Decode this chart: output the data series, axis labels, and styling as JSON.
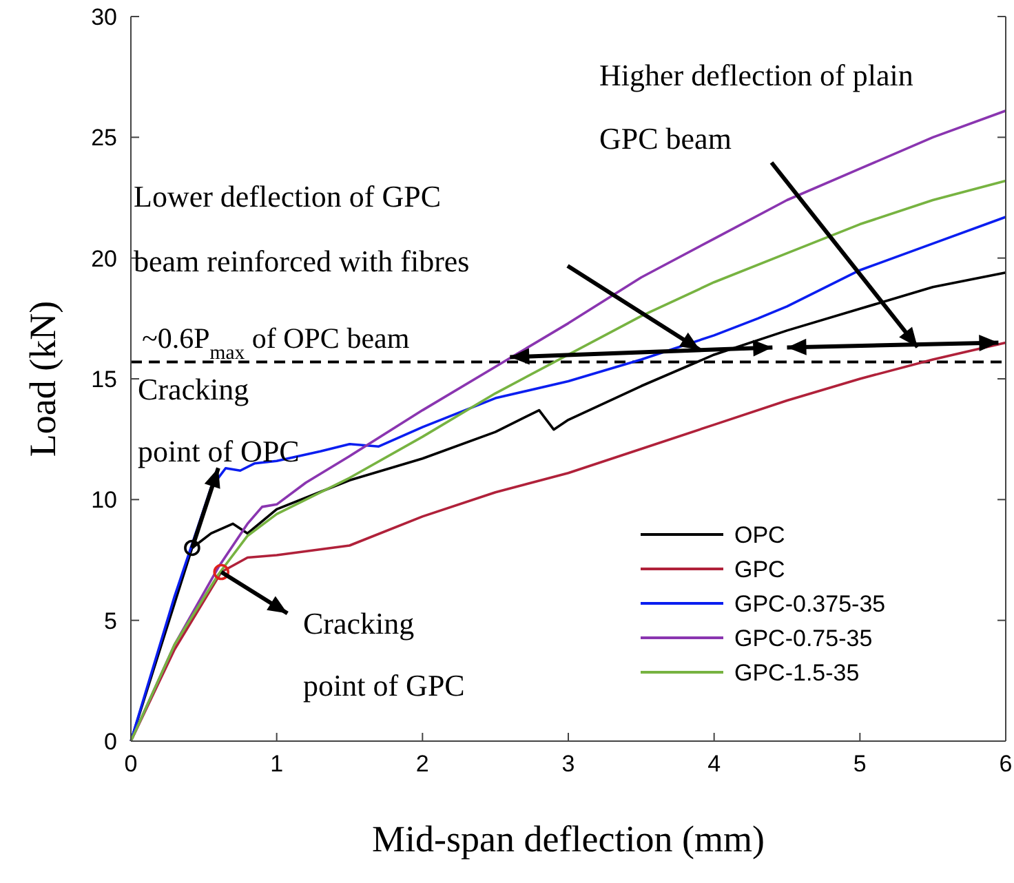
{
  "chart_data": {
    "type": "line",
    "xlabel": "Mid-span deflection (mm)",
    "ylabel": "Load (kN)",
    "xlim": [
      0,
      6
    ],
    "ylim": [
      0,
      30
    ],
    "xticks": [
      0,
      1,
      2,
      3,
      4,
      5,
      6
    ],
    "yticks": [
      0,
      5,
      10,
      15,
      20,
      25,
      30
    ],
    "grid": false,
    "legend": "bottom right",
    "line_style": "solid",
    "marker": "none",
    "series": [
      {
        "name": "OPC",
        "color": "#000000",
        "x": [
          0,
          0.42,
          0.55,
          0.7,
          0.8,
          1.0,
          1.5,
          2.0,
          2.5,
          2.8,
          2.9,
          3.0,
          3.5,
          4.0,
          4.5,
          5.0,
          5.5,
          6.0
        ],
        "values": [
          0,
          8.0,
          8.6,
          9.0,
          8.6,
          9.6,
          10.8,
          11.7,
          12.8,
          13.7,
          12.9,
          13.3,
          14.7,
          16.0,
          17.0,
          17.9,
          18.8,
          19.4
        ]
      },
      {
        "name": "GPC",
        "color": "#b0213a",
        "x": [
          0,
          0.3,
          0.62,
          0.8,
          1.0,
          1.5,
          2.0,
          2.5,
          3.0,
          3.5,
          4.0,
          4.5,
          5.0,
          5.5,
          6.0
        ],
        "values": [
          0,
          3.8,
          7.0,
          7.6,
          7.7,
          8.1,
          9.3,
          10.3,
          11.1,
          12.1,
          13.1,
          14.1,
          15.0,
          15.8,
          16.5
        ]
      },
      {
        "name": "GPC-0.375-35",
        "color": "#0a1ef0",
        "x": [
          0,
          0.3,
          0.55,
          0.65,
          0.75,
          0.85,
          1.0,
          1.3,
          1.5,
          1.7,
          2.0,
          2.5,
          3.0,
          3.5,
          4.0,
          4.3,
          4.5,
          5.0,
          5.5,
          6.0
        ],
        "values": [
          0,
          6.0,
          10.5,
          11.3,
          11.2,
          11.5,
          11.6,
          12.0,
          12.3,
          12.2,
          13.0,
          14.2,
          14.9,
          15.8,
          16.8,
          17.5,
          18.0,
          19.5,
          20.6,
          21.7
        ]
      },
      {
        "name": "GPC-0.75-35",
        "color": "#8a35b0",
        "x": [
          0,
          0.3,
          0.6,
          0.8,
          0.9,
          1.0,
          1.2,
          1.5,
          2.0,
          2.5,
          3.0,
          3.5,
          4.0,
          4.5,
          5.0,
          5.5,
          6.0
        ],
        "values": [
          0,
          4.0,
          7.2,
          9.0,
          9.7,
          9.8,
          10.7,
          11.8,
          13.7,
          15.5,
          17.3,
          19.2,
          20.8,
          22.4,
          23.7,
          25.0,
          26.1
        ]
      },
      {
        "name": "GPC-1.5-35",
        "color": "#77b341",
        "x": [
          0,
          0.3,
          0.6,
          0.8,
          1.0,
          1.5,
          2.0,
          2.5,
          3.0,
          3.5,
          4.0,
          4.5,
          5.0,
          5.5,
          6.0
        ],
        "values": [
          0,
          4.0,
          6.9,
          8.5,
          9.4,
          10.9,
          12.6,
          14.4,
          16.0,
          17.6,
          19.0,
          20.2,
          21.4,
          22.4,
          23.2
        ]
      }
    ],
    "ref_lines": [
      {
        "axis": "y",
        "value": 15.7,
        "label": "~0.6P$_{max}$ of OPC beam",
        "color": "#000000",
        "line_style": "dashed"
      }
    ],
    "annotations": [
      {
        "text": "Cracking point of OPC",
        "x": 0.42,
        "y": 8.0
      },
      {
        "text": "Cracking point of GPC",
        "x": 0.62,
        "y": 7.0
      },
      "Lower deflection of GPC beam reinforced with fibres",
      "Higher deflection of plain GPC beam"
    ]
  }
}
